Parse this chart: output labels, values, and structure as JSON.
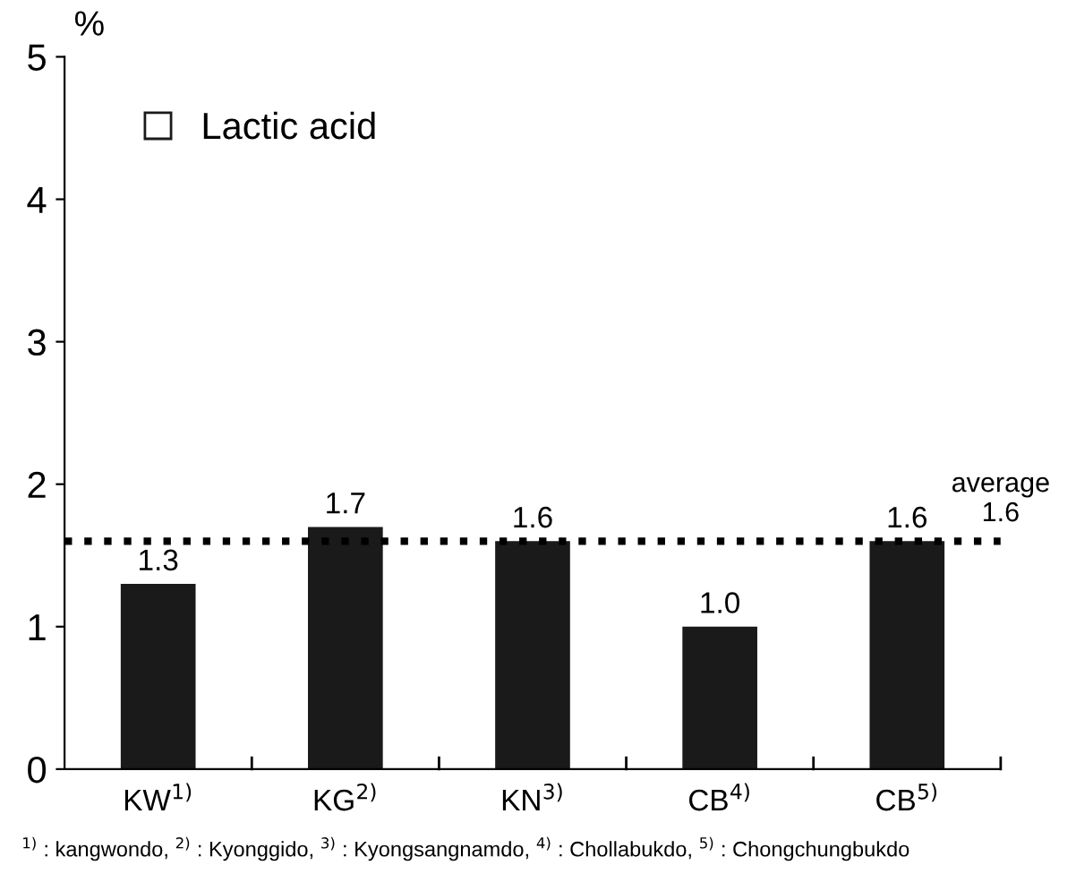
{
  "chart_data": {
    "type": "bar",
    "ylabel": "%",
    "categories": [
      "KW$^{1)}$",
      "KG$^{2)}$",
      "KN$^{3)}$",
      "CB$^{4)}$",
      "CB$^{5)}$"
    ],
    "series": [
      {
        "name": "Lactic acid",
        "color": "#1a1a1a",
        "values": [
          1.3,
          1.7,
          1.6,
          1.0,
          1.6
        ],
        "value_labels": [
          "1.3",
          "1.7",
          "1.6",
          "1.0",
          "1.6"
        ]
      }
    ],
    "ylim": [
      0,
      5
    ],
    "yticks": [
      0,
      1,
      2,
      3,
      4,
      5
    ],
    "grid": false,
    "legend": "top left",
    "ref_lines": [
      {
        "axis": "y",
        "value": 1.6,
        "label": "average\n1.6",
        "color": "#000000",
        "line_style": "dotted"
      }
    ],
    "annotations": [
      "$^{1)}$ : kangwondo, $^{2)}$ : Kyonggido, $^{3)}$ : Kyongsangnamdo, $^{4)}$ : Chollabukdo, $^{5)}$ : Chongchungbukdo"
    ]
  }
}
